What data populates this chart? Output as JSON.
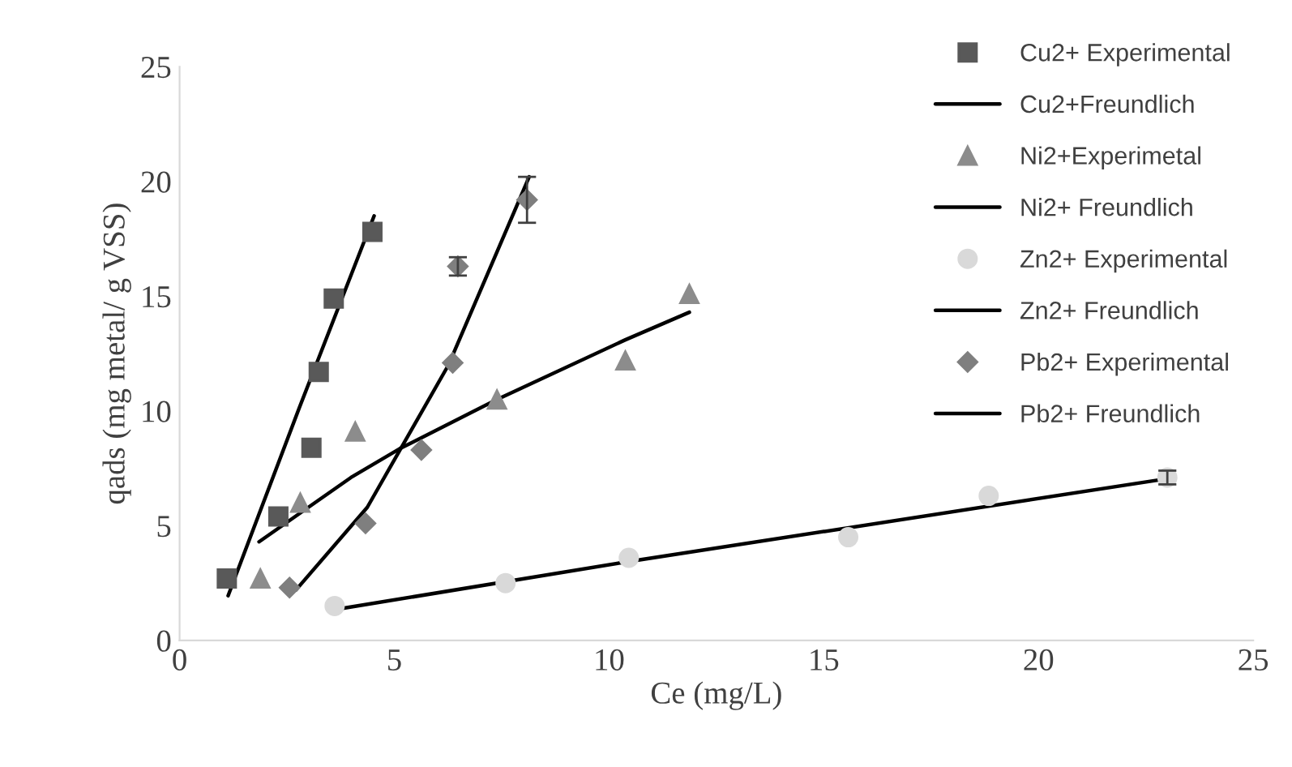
{
  "chart_data": {
    "type": "scatter",
    "xlabel": "Ce (mg/L)",
    "ylabel": "qads (mg metal/ g VSS)",
    "xlim": [
      0,
      25
    ],
    "ylim": [
      0,
      25
    ],
    "xticks": [
      0,
      5,
      10,
      15,
      20,
      25
    ],
    "yticks": [
      0,
      5,
      10,
      15,
      20,
      25
    ],
    "grid": false,
    "legend": "top right",
    "series": [
      {
        "name": "Cu2+ Experimental",
        "marker": "square",
        "color": "#595959",
        "x": [
          1.1,
          2.3,
          3.07,
          3.24,
          3.59,
          4.49
        ],
        "values": [
          2.7,
          5.4,
          8.4,
          11.7,
          14.9,
          17.8
        ]
      },
      {
        "name": "Cu2+Freundlich",
        "type": "line",
        "marker": "none",
        "color": "#000000",
        "x": [
          1.13,
          2.8,
          4.53
        ],
        "values": [
          1.95,
          10.2,
          18.5
        ]
      },
      {
        "name": "Ni2+Experimetal",
        "marker": "triangle",
        "color": "#8c8c8c",
        "x": [
          1.88,
          2.81,
          4.09,
          7.39,
          10.38,
          11.87
        ],
        "values": [
          2.7,
          6.0,
          9.1,
          10.5,
          12.2,
          15.1
        ]
      },
      {
        "name": "Ni2+ Freundlich",
        "type": "line",
        "marker": "none",
        "color": "#000000",
        "x": [
          1.85,
          3.99,
          5.12,
          7.39,
          10.38,
          11.87
        ],
        "values": [
          4.3,
          7.1,
          8.35,
          10.5,
          13.1,
          14.3
        ]
      },
      {
        "name": "Zn2+ Experimental",
        "marker": "circle",
        "color": "#d9d9d9",
        "x": [
          3.61,
          7.59,
          10.46,
          15.57,
          18.84,
          23.0
        ],
        "values": [
          1.5,
          2.5,
          3.6,
          4.5,
          6.3,
          7.1
        ],
        "errors": [
          null,
          null,
          null,
          null,
          null,
          0.3
        ]
      },
      {
        "name": "Zn2+ Freundlich",
        "type": "line",
        "marker": "none",
        "color": "#000000",
        "x": [
          3.8,
          10.5,
          23.0
        ],
        "values": [
          1.4,
          3.45,
          7.05
        ]
      },
      {
        "name": "Pb2+ Experimental",
        "marker": "diamond",
        "color": "#7f7f7f",
        "x": [
          2.56,
          4.33,
          5.63,
          6.36,
          6.48,
          8.09
        ],
        "values": [
          2.3,
          5.1,
          8.3,
          12.1,
          16.3,
          19.2
        ],
        "errors": [
          null,
          null,
          null,
          null,
          0.4,
          1.0
        ]
      },
      {
        "name": "Pb2+ Freundlich",
        "type": "line",
        "marker": "none",
        "color": "#000000",
        "x": [
          2.71,
          4.37,
          6.26,
          8.14
        ],
        "values": [
          2.2,
          5.8,
          12.0,
          20.2
        ]
      }
    ]
  }
}
